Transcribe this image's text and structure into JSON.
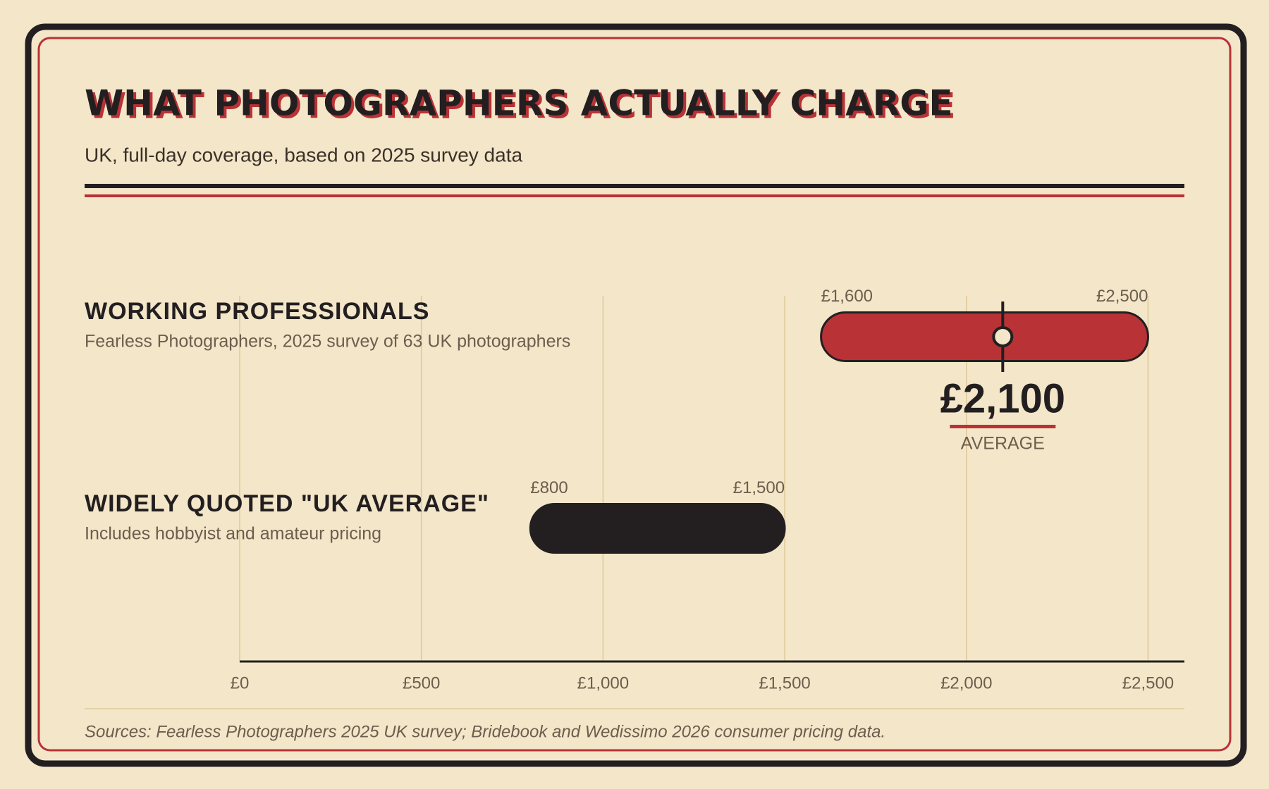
{
  "chart_data": {
    "type": "range",
    "title": "WHAT PHOTOGRAPHERS ACTUALLY CHARGE",
    "subtitle": "UK, full-day coverage, based on 2025 survey data",
    "categories": [
      "WORKING PROFESSIONALS",
      "WIDELY QUOTED \"UK AVERAGE\""
    ],
    "descriptions": [
      "Fearless Photographers, 2025 survey of 63 UK photographers",
      "Includes hobbyist and amateur pricing"
    ],
    "low": [
      1600,
      800
    ],
    "low_labels": [
      "£1,600",
      "£800"
    ],
    "high": [
      2500,
      1500
    ],
    "high_labels": [
      "£2,500",
      "£1,500"
    ],
    "colors": [
      "#b83236",
      "#231f20"
    ],
    "average": {
      "value": 2100,
      "value_label": "£2,100",
      "label": "AVERAGE"
    },
    "xlim": [
      0,
      2600
    ],
    "xticks": [
      {
        "value": 0,
        "label": "£0"
      },
      {
        "value": 500,
        "label": "£500"
      },
      {
        "value": 1000,
        "label": "£1,000"
      },
      {
        "value": 1500,
        "label": "£1,500"
      },
      {
        "value": 2000,
        "label": "£2,000"
      },
      {
        "value": 2500,
        "label": "£2,500"
      }
    ],
    "grid": true,
    "source": "Sources: Fearless Photographers 2025 UK survey; Bridebook and Wedissimo 2026 consumer pricing data."
  }
}
